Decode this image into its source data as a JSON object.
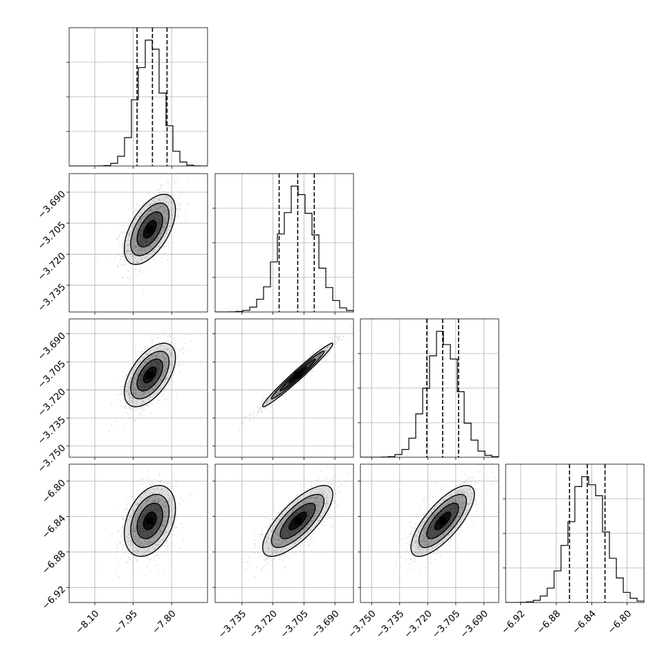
{
  "chart_data": {
    "type": "corner",
    "parameters": [
      {
        "ticks": [
          -8.1,
          -7.95,
          -7.8
        ],
        "range": [
          -8.2,
          -7.66
        ],
        "mean": -7.885,
        "sd": 0.05,
        "q": [
          -7.935,
          -7.875,
          -7.818
        ]
      },
      {
        "ticks": [
          -3.735,
          -3.72,
          -3.705,
          -3.69
        ],
        "range": [
          -3.748,
          -3.681
        ],
        "mean": -3.708,
        "sd": 0.0085,
        "q": [
          -3.717,
          -3.708,
          -3.7
        ]
      },
      {
        "ticks": [
          -3.75,
          -3.735,
          -3.72,
          -3.705,
          -3.69
        ],
        "range": [
          -3.756,
          -3.682
        ],
        "mean": -3.712,
        "sd": 0.0085,
        "q": [
          -3.7205,
          -3.712,
          -3.7035
        ]
      },
      {
        "ticks": [
          -6.92,
          -6.88,
          -6.84,
          -6.8
        ],
        "range": [
          -6.937,
          -6.781
        ],
        "mean": -6.845,
        "sd": 0.02,
        "q": [
          -6.865,
          -6.845,
          -6.825
        ]
      }
    ],
    "correlations": {
      "1-0": 0.55,
      "2-0": 0.55,
      "2-1": 0.98,
      "3-0": 0.35,
      "3-1": 0.75,
      "3-2": 0.75
    },
    "tick_labels": [
      [
        "−8.10",
        "−7.95",
        "−7.80"
      ],
      [
        "−3.735",
        "−3.720",
        "−3.705",
        "−3.690"
      ],
      [
        "−3.750",
        "−3.735",
        "−3.720",
        "−3.705",
        "−3.690"
      ],
      [
        "−6.92",
        "−6.88",
        "−6.84",
        "−6.80"
      ]
    ],
    "grid": true,
    "quantile_lines": "dashed",
    "contour_levels": [
      0.5,
      1.0,
      1.5,
      2.0
    ],
    "colors": {
      "line": "#000000",
      "grid": "#b0b0b0",
      "points": "#9a9a9a"
    }
  }
}
